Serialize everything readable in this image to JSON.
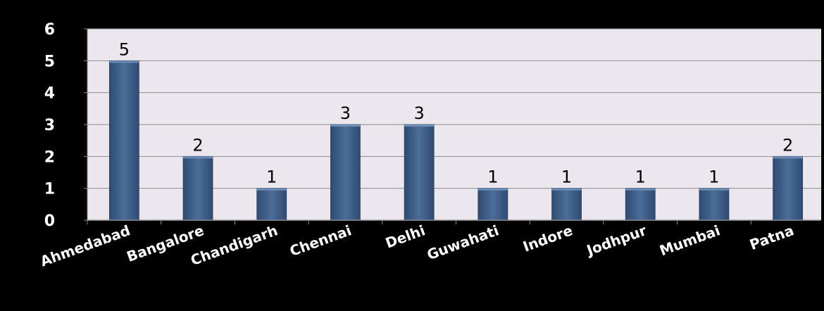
{
  "chart_data": {
    "type": "bar",
    "categories": [
      "Ahmedabad",
      "Bangalore",
      "Chandigarh",
      "Chennai",
      "Delhi",
      "Guwahati",
      "Indore",
      "Jodhpur",
      "Mumbai",
      "Patna"
    ],
    "values": [
      5,
      2,
      1,
      3,
      3,
      1,
      1,
      1,
      1,
      2
    ],
    "ylim": [
      0,
      6
    ],
    "yticks": [
      0,
      1,
      2,
      3,
      4,
      5,
      6
    ],
    "grid": true,
    "data_labels": true,
    "colors": {
      "bar": "#3d5d87",
      "plot_background": "#ece7ee",
      "page_background": "#000000",
      "gridline": "#8c8c8c",
      "text": "#ffffff"
    }
  }
}
